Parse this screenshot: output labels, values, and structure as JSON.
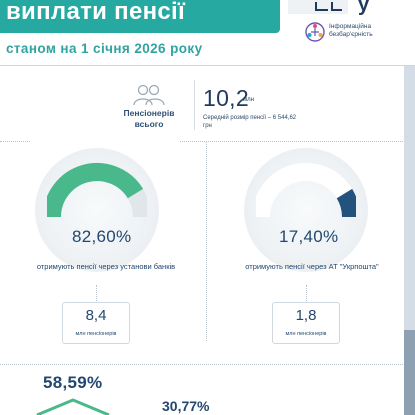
{
  "header": {
    "title": "виплати пенсії",
    "subtitle": "станом на 1 січня 2026 року"
  },
  "logo": {
    "text": "Інформаційна безбар'єрність",
    "cutoff_text": "y"
  },
  "total": {
    "label": "Пенсіонерів всього",
    "value": "10,2",
    "unit": "млн",
    "average_label": "Середній розмір пенсії – 6 544,62 грн"
  },
  "banks": {
    "percent": "82,60%",
    "percent_value": 82.6,
    "description": "отримують пенсії через установи банків",
    "count": "8,4",
    "unit": "млн пенсіонерів",
    "color": "#49b98b"
  },
  "ukrposhta": {
    "percent": "17,40%",
    "percent_value": 17.4,
    "description": "отримують пенсії через АТ \"Укрпошта\"",
    "count": "1,8",
    "unit": "млн пенсіонерів",
    "color": "#24527e"
  },
  "bottom": {
    "percent_a": "58,59%",
    "percent_b": "30,77%"
  },
  "colors": {
    "teal": "#25a9a1",
    "navy": "#1f3a5a",
    "green": "#49b98b",
    "dark_blue": "#24527e"
  }
}
